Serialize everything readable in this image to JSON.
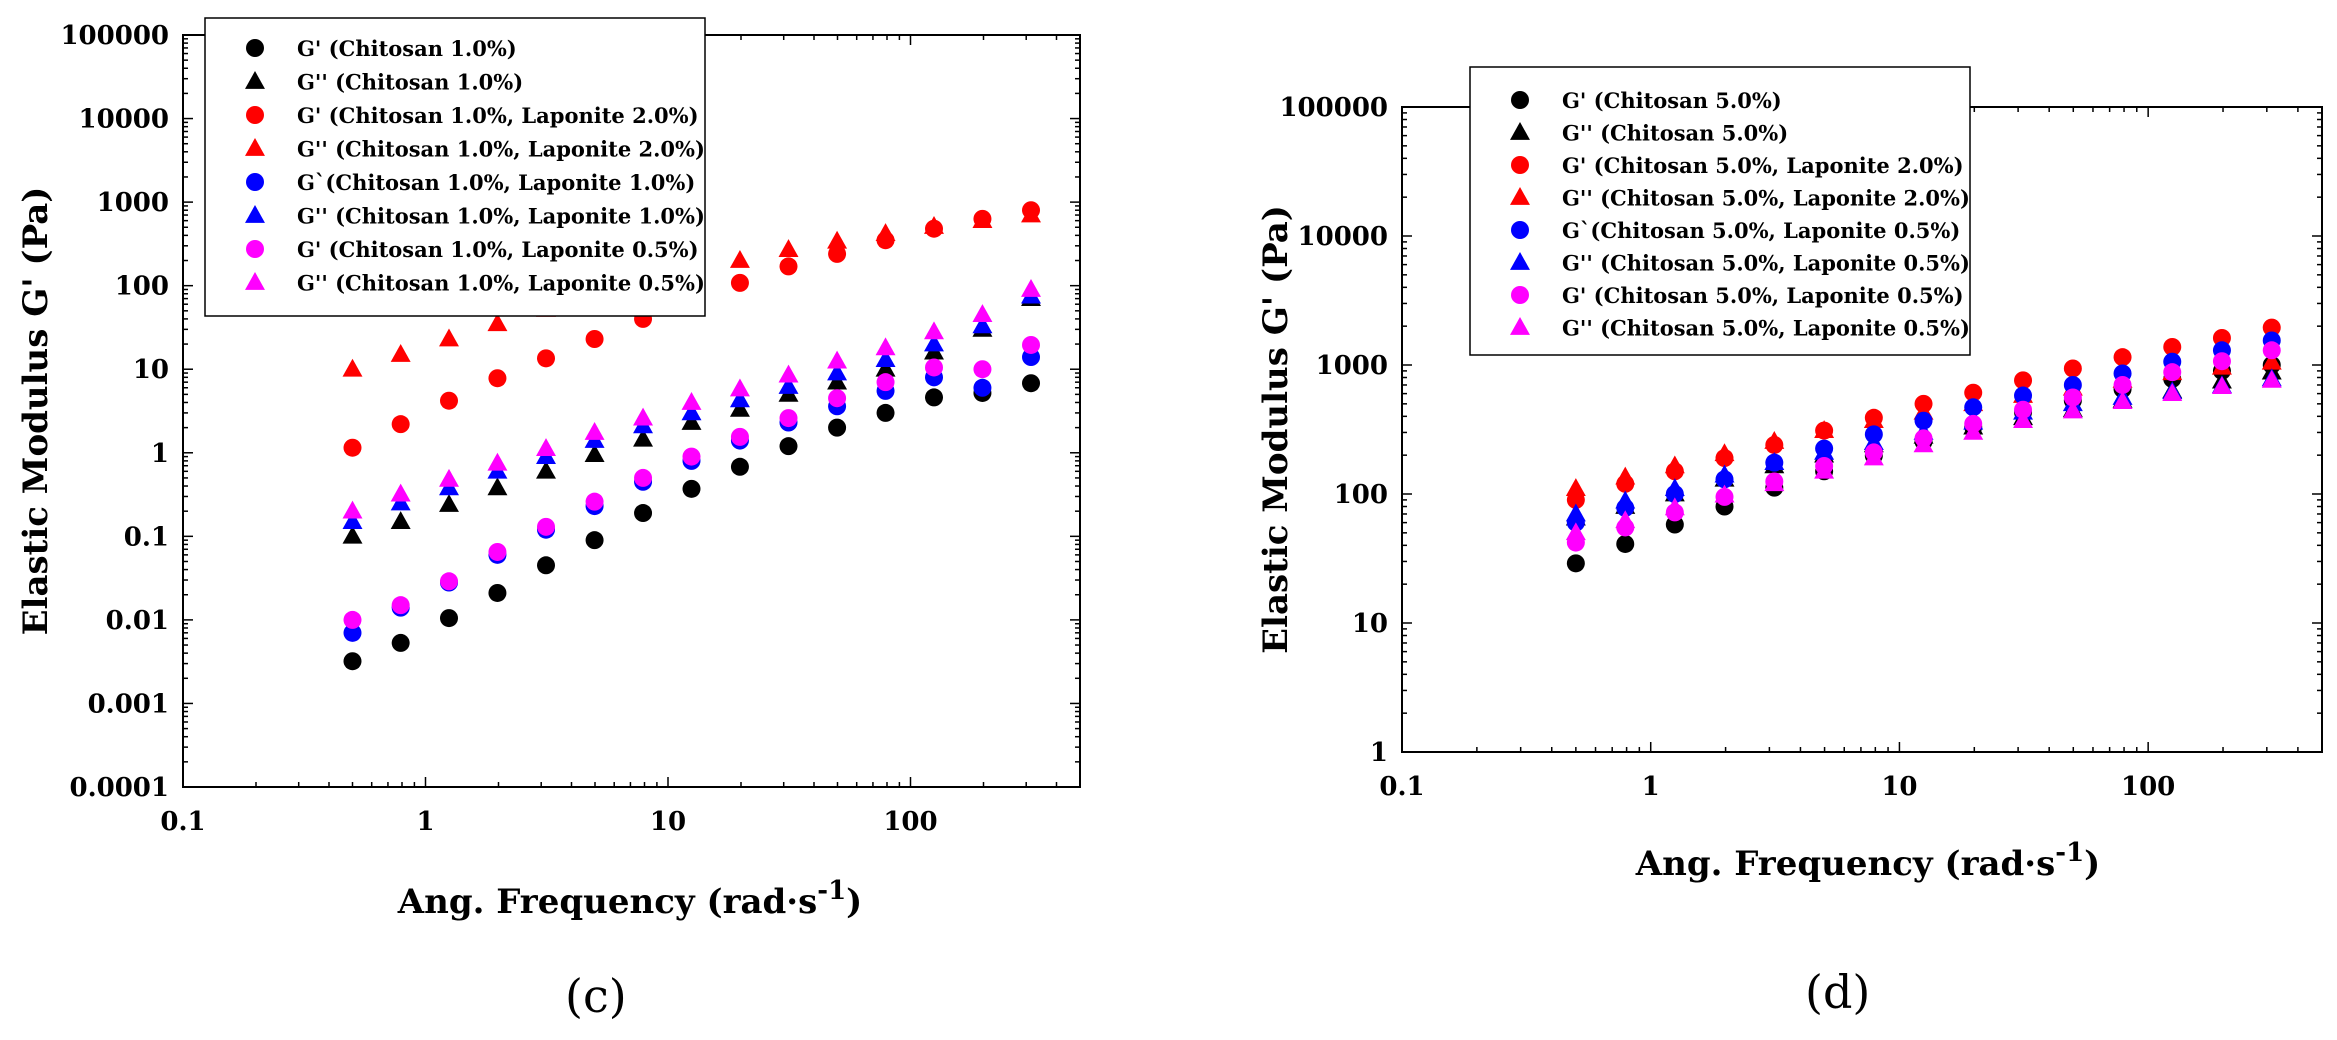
{
  "chart_data": [
    {
      "type": "scatter",
      "panel_label": "(c)",
      "xlabel": "Ang. Frequency (rad·s",
      "xlabel_sup": "-1",
      "xlabel_end": ")",
      "ylabel": "Elastic Modulus G' (Pa)",
      "xscale": "log",
      "yscale": "log",
      "xlim": [
        0.1,
        500
      ],
      "ylim": [
        0.0001,
        100000
      ],
      "xticks": [
        "0.1",
        "1",
        "10",
        "100"
      ],
      "yticks": [
        "0.0001",
        "0.001",
        "0.01",
        "0.1",
        "1",
        "10",
        "100",
        "1000",
        "10000",
        "100000"
      ],
      "legend_position": "top-left",
      "x": [
        0.5,
        0.79,
        1.25,
        1.98,
        3.14,
        4.98,
        7.89,
        12.5,
        19.8,
        31.4,
        49.8,
        78.9,
        125,
        198,
        314
      ],
      "series": [
        {
          "name": "G' (Chitosan 1.0%)",
          "marker": "circle",
          "color": "#000000",
          "values": [
            0.0032,
            0.0053,
            0.0105,
            0.021,
            0.045,
            0.09,
            0.19,
            0.37,
            0.68,
            1.2,
            2.0,
            3.0,
            4.6,
            5.2,
            6.8
          ]
        },
        {
          "name": "G'' (Chitosan 1.0%)",
          "marker": "triangle",
          "color": "#000000",
          "values": [
            0.1,
            0.15,
            0.24,
            0.38,
            0.6,
            0.95,
            1.45,
            2.3,
            3.3,
            5.0,
            7.0,
            10.0,
            16.0,
            30.0,
            70.0
          ]
        },
        {
          "name": "G' (Chitosan 1.0%, Laponite 2.0%)",
          "marker": "circle",
          "color": "#ff0000",
          "values": [
            1.15,
            2.2,
            4.2,
            7.8,
            13.5,
            23.0,
            40.0,
            67.0,
            108.0,
            170.0,
            240.0,
            350.0,
            480.0,
            630.0,
            800.0
          ]
        },
        {
          "name": "G'' (Chitosan 1.0%, Laponite 2.0%)",
          "marker": "triangle",
          "color": "#ff0000",
          "values": [
            10.0,
            15.0,
            23.0,
            35.0,
            52.0,
            75.0,
            105.0,
            148.0,
            200.0,
            270.0,
            340.0,
            420.0,
            510.0,
            600.0,
            700.0
          ]
        },
        {
          "name": "G`(Chitosan 1.0%, Laponite 1.0%)",
          "marker": "circle",
          "color": "#0000ff",
          "values": [
            0.007,
            0.014,
            0.028,
            0.06,
            0.12,
            0.23,
            0.45,
            0.8,
            1.4,
            2.3,
            3.6,
            5.5,
            8.0,
            6.0,
            14.0
          ]
        },
        {
          "name": "G'' (Chitosan 1.0%, Laponite 1.0%)",
          "marker": "triangle",
          "color": "#0000ff",
          "values": [
            0.15,
            0.25,
            0.38,
            0.6,
            0.9,
            1.4,
            2.1,
            3.0,
            4.3,
            6.2,
            9.0,
            13.0,
            20.0,
            33.0,
            75.0
          ]
        },
        {
          "name": "G' (Chitosan 1.0%, Laponite 0.5%)",
          "marker": "circle",
          "color": "#ff00ff",
          "values": [
            0.01,
            0.015,
            0.029,
            0.065,
            0.13,
            0.26,
            0.5,
            0.9,
            1.55,
            2.6,
            4.5,
            7.0,
            10.5,
            10.0,
            19.5
          ]
        },
        {
          "name": "G'' (Chitosan 1.0%, Laponite 0.5%)",
          "marker": "triangle",
          "color": "#ff00ff",
          "values": [
            0.2,
            0.32,
            0.48,
            0.75,
            1.12,
            1.75,
            2.6,
            4.0,
            5.8,
            8.5,
            12.5,
            18.0,
            28.0,
            45.0,
            90.0
          ]
        }
      ]
    },
    {
      "type": "scatter",
      "panel_label": "(d)",
      "xlabel": "Ang. Frequency (rad·s",
      "xlabel_sup": "-1",
      "xlabel_end": ")",
      "ylabel": "Elastic Modulus G' (Pa)",
      "xscale": "log",
      "yscale": "log",
      "xlim": [
        0.1,
        500
      ],
      "ylim": [
        1,
        100000
      ],
      "xticks": [
        "0.1",
        "1",
        "10",
        "100"
      ],
      "yticks": [
        "1",
        "10",
        "100",
        "1000",
        "10000",
        "100000"
      ],
      "legend_position": "top-left",
      "x": [
        0.5,
        0.79,
        1.25,
        1.98,
        3.14,
        4.98,
        7.89,
        12.5,
        19.8,
        31.4,
        49.8,
        78.9,
        125,
        198,
        314
      ],
      "series": [
        {
          "name": "G' (Chitosan 5.0%)",
          "marker": "circle",
          "color": "#000000",
          "values": [
            29,
            41,
            58,
            80,
            112,
            150,
            198,
            255,
            330,
            430,
            530,
            650,
            780,
            900,
            1000
          ]
        },
        {
          "name": "G'' (Chitosan 5.0%)",
          "marker": "triangle",
          "color": "#000000",
          "values": [
            65,
            80,
            100,
            130,
            165,
            200,
            240,
            280,
            330,
            390,
            450,
            530,
            630,
            750,
            880
          ]
        },
        {
          "name": "G' (Chitosan 5.0%, Laponite 2.0%)",
          "marker": "circle",
          "color": "#ff0000",
          "values": [
            90,
            120,
            150,
            190,
            240,
            310,
            390,
            500,
            610,
            760,
            940,
            1150,
            1380,
            1620,
            1950
          ]
        },
        {
          "name": "G'' (Chitosan 5.0%, Laponite 2.0%)",
          "marker": "triangle",
          "color": "#ff0000",
          "values": [
            110,
            135,
            165,
            205,
            255,
            310,
            370,
            430,
            500,
            580,
            660,
            760,
            870,
            960,
            1050
          ]
        },
        {
          "name": "G`(Chitosan 5.0%, Laponite 0.5%)",
          "marker": "circle",
          "color": "#0000ff",
          "values": [
            60,
            78,
            100,
            130,
            175,
            225,
            290,
            370,
            470,
            580,
            700,
            860,
            1060,
            1300,
            1550
          ]
        },
        {
          "name": "G'' (Chitosan 5.0%, Laponite 0.5%)",
          "marker": "triangle",
          "color": "#0000ff",
          "values": [
            70,
            88,
            110,
            140,
            175,
            210,
            250,
            300,
            360,
            430,
            500,
            560,
            620,
            690,
            780
          ]
        },
        {
          "name": "G' (Chitosan 5.0%, Laponite 0.5%)",
          "marker": "circle",
          "color": "#ff00ff",
          "values": [
            42,
            55,
            72,
            95,
            125,
            165,
            210,
            270,
            350,
            450,
            560,
            700,
            880,
            1070,
            1300
          ]
        },
        {
          "name": "G'' (Chitosan 5.0%, Laponite 0.5%)",
          "marker": "triangle",
          "color": "#ff00ff",
          "values": [
            50,
            62,
            78,
            98,
            120,
            150,
            190,
            240,
            300,
            370,
            440,
            520,
            600,
            680,
            760
          ]
        }
      ]
    }
  ]
}
